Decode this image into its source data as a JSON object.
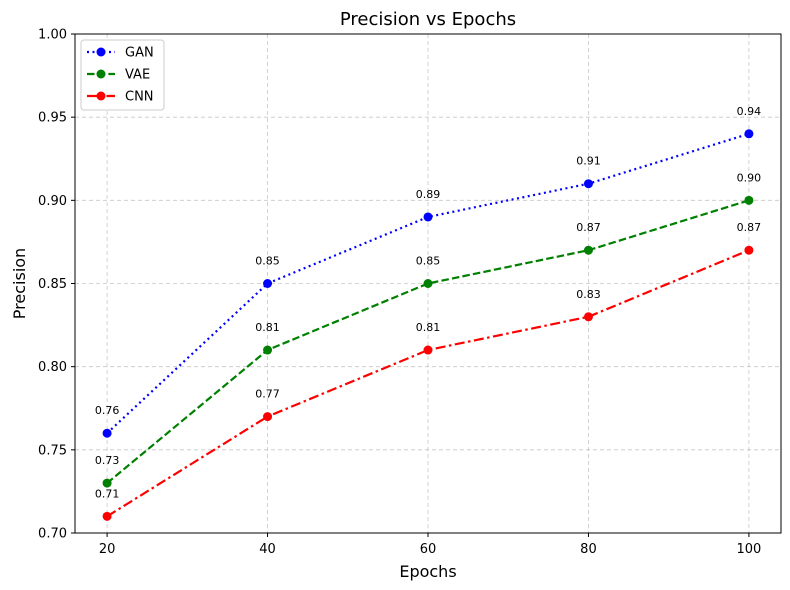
{
  "chart_data": {
    "type": "line",
    "title": "Precision vs Epochs",
    "xlabel": "Epochs",
    "ylabel": "Precision",
    "x": [
      20,
      40,
      60,
      80,
      100
    ],
    "x_ticks": [
      "20",
      "40",
      "60",
      "80",
      "100"
    ],
    "y_ticks": [
      "0.70",
      "0.75",
      "0.80",
      "0.85",
      "0.90",
      "0.95",
      "1.00"
    ],
    "xlim": [
      16,
      104
    ],
    "ylim": [
      0.7,
      1.0
    ],
    "grid": true,
    "legend_position": "top-left",
    "series": [
      {
        "name": "GAN",
        "values": [
          0.76,
          0.85,
          0.89,
          0.91,
          0.94
        ],
        "labels": [
          "0.76",
          "0.85",
          "0.89",
          "0.91",
          "0.94"
        ],
        "color": "#0000ff",
        "line_style": "dotted",
        "marker": "circle"
      },
      {
        "name": "VAE",
        "values": [
          0.73,
          0.81,
          0.85,
          0.87,
          0.9
        ],
        "labels": [
          "0.73",
          "0.81",
          "0.85",
          "0.87",
          "0.90"
        ],
        "color": "#008000",
        "line_style": "dashed",
        "marker": "circle"
      },
      {
        "name": "CNN",
        "values": [
          0.71,
          0.77,
          0.81,
          0.83,
          0.87
        ],
        "labels": [
          "0.71",
          "0.77",
          "0.81",
          "0.83",
          "0.87"
        ],
        "color": "#ff0000",
        "line_style": "dashdot",
        "marker": "circle"
      }
    ]
  }
}
